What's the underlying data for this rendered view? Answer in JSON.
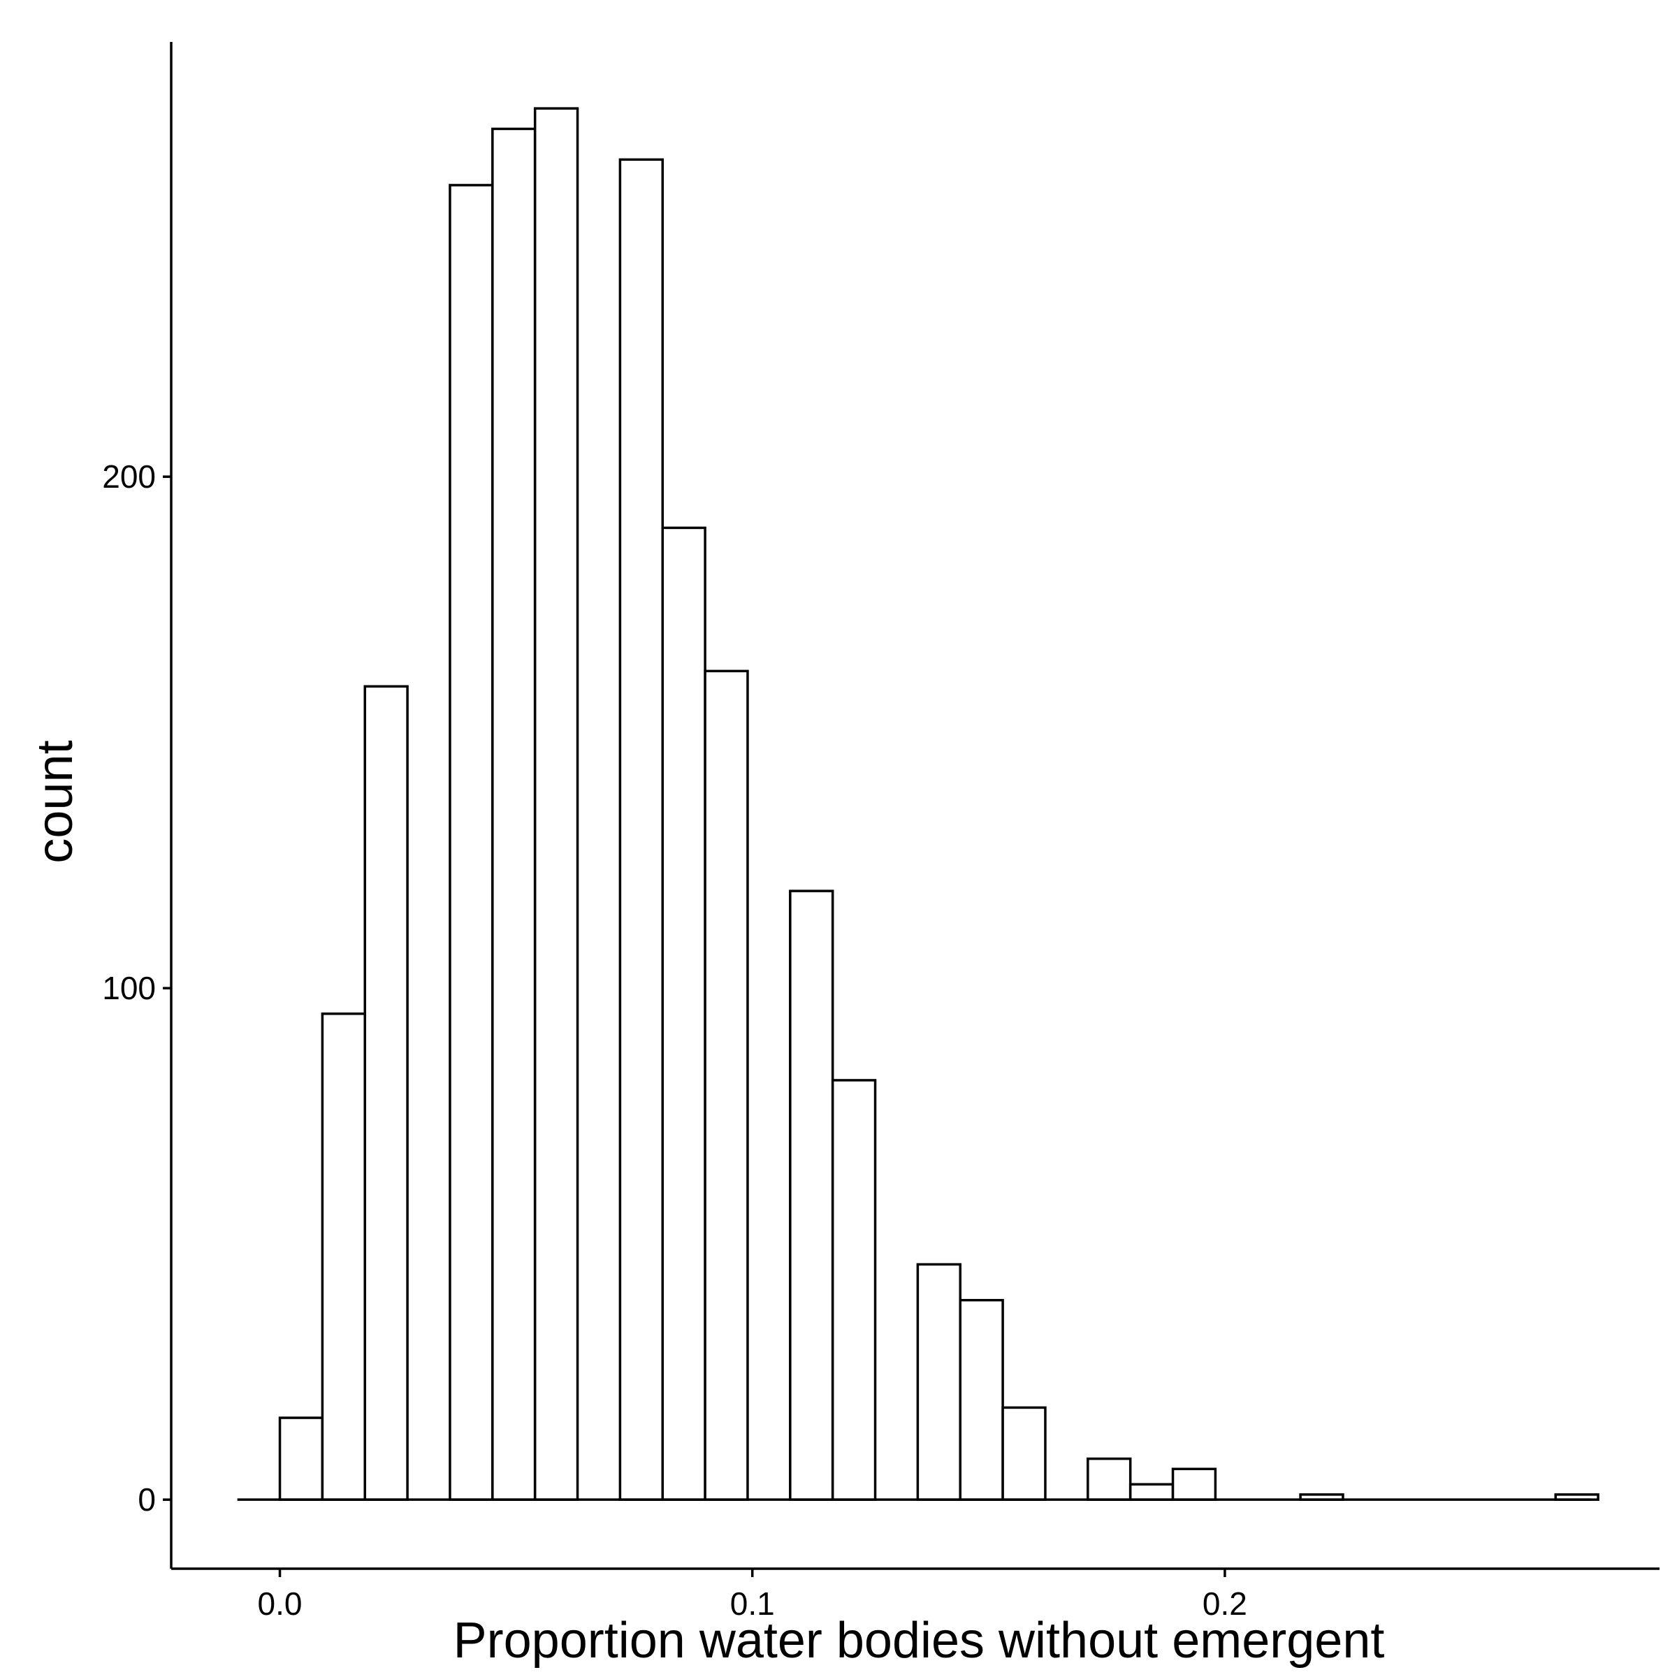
{
  "chart_data": {
    "type": "bar",
    "subtype": "histogram",
    "xlabel": "Proportion water bodies without emergent",
    "ylabel": "count",
    "xlim": [
      -0.023,
      0.292
    ],
    "ylim": [
      -13.5,
      285
    ],
    "x_ticks": [
      0.0,
      0.1,
      0.2
    ],
    "x_tick_labels": [
      "0.0",
      "0.1",
      "0.2"
    ],
    "y_ticks": [
      0,
      100,
      200
    ],
    "y_tick_labels": [
      "0",
      "100",
      "200"
    ],
    "bin_width": 0.009,
    "baseline_range": [
      -0.009,
      0.2775
    ],
    "bin_starts": [
      0.0,
      0.009,
      0.018,
      0.027,
      0.036,
      0.045,
      0.054,
      0.063,
      0.072,
      0.081,
      0.09,
      0.099,
      0.108,
      0.117,
      0.126,
      0.135,
      0.144,
      0.153,
      0.162,
      0.171,
      0.18,
      0.189,
      0.198,
      0.207,
      0.216,
      0.225,
      0.234,
      0.243,
      0.252,
      0.261,
      0.27
    ],
    "values": [
      16,
      95,
      159,
      0,
      257,
      268,
      272,
      0,
      262,
      190,
      162,
      0,
      119,
      82,
      0,
      46,
      39,
      18,
      0,
      8,
      3,
      6,
      0,
      0,
      1,
      0,
      0,
      0,
      0,
      0,
      1
    ],
    "grid": false,
    "legend": "none",
    "colors": {
      "bar_fill": "#ffffff",
      "bar_stroke": "#000000",
      "axis": "#000000"
    }
  }
}
